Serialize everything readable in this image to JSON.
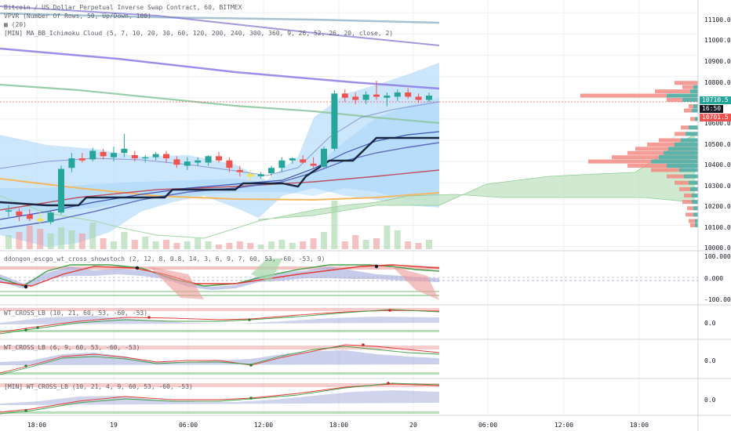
{
  "main_legend": {
    "title": "Bitcoin / US Dollar Perpetual Inverse Swap Contract, 60, BITMEX",
    "vpvr": "VPVR (Number Of Rows, 50, Up/Down, 100)",
    "unnamed": "(20)",
    "ichimoku": "[MIN] MA_BB_Ichimoku Cloud (5, 7, 10, 20, 30, 60, 120, 200, 240, 300, 360, 9, 26, 52, 26, 20, close, 2)"
  },
  "price_axis": {
    "labels": [
      "11100.0",
      "11000.0",
      "10900.0",
      "10800.0",
      "10600.0",
      "10500.0",
      "10400.0",
      "10300.0",
      "10200.0",
      "10100.0",
      "10000.0"
    ],
    "tags": [
      {
        "text": "10710.5",
        "color": "#26a69a"
      },
      {
        "text": "16:50",
        "color": "#131722"
      },
      {
        "text": "10701.5",
        "color": "#ef5350"
      }
    ]
  },
  "time_axis": {
    "labels": [
      "18:00",
      "19",
      "06:00",
      "12:00",
      "18:00",
      "20",
      "06:00",
      "12:00",
      "18:00"
    ]
  },
  "panes": [
    {
      "title": "ddongon_escgo_wt_cross_showstoch (2, 12, 8, 0.8, 14, 3, 6, 9, 7, 60, 53, -60, -53, 9)",
      "axis": [
        "100.000",
        "0.000",
        "-100.000"
      ]
    },
    {
      "title": "WT_CROSS_LB (10, 21, 60, 53, -60, -53)",
      "axis": [
        "0.0"
      ]
    },
    {
      "title": "WT_CROSS_LB (6, 9, 60, 53, -60, -53)",
      "axis": [
        "0.0"
      ]
    },
    {
      "title": "[MIN] WT_CROSS_LB (10, 21, 4, 9, 60, 53, -60, -53)",
      "axis": [
        "0.0"
      ]
    }
  ],
  "chart_data": {
    "type": "candlestick",
    "symbol": "Bitcoin / US Dollar Perpetual Inverse Swap Contract",
    "interval": "60",
    "exchange": "BITMEX",
    "ylim": [
      9980,
      11160
    ],
    "last_price": 10710.5,
    "bid_marker": 10701.5,
    "countdown": "16:50",
    "candles": [
      {
        "o": 10165,
        "h": 10195,
        "l": 10140,
        "c": 10170
      },
      {
        "o": 10165,
        "h": 10180,
        "l": 10120,
        "c": 10145
      },
      {
        "o": 10150,
        "h": 10175,
        "l": 10120,
        "c": 10130
      },
      {
        "o": 10130,
        "h": 10160,
        "l": 10105,
        "c": 10120
      },
      {
        "o": 10115,
        "h": 10165,
        "l": 10105,
        "c": 10160
      },
      {
        "o": 10160,
        "h": 10380,
        "l": 10150,
        "c": 10365
      },
      {
        "o": 10370,
        "h": 10440,
        "l": 10350,
        "c": 10415
      },
      {
        "o": 10415,
        "h": 10440,
        "l": 10395,
        "c": 10405
      },
      {
        "o": 10410,
        "h": 10465,
        "l": 10400,
        "c": 10450
      },
      {
        "o": 10445,
        "h": 10460,
        "l": 10410,
        "c": 10425
      },
      {
        "o": 10420,
        "h": 10470,
        "l": 10400,
        "c": 10440
      },
      {
        "o": 10440,
        "h": 10530,
        "l": 10420,
        "c": 10460
      },
      {
        "o": 10430,
        "h": 10450,
        "l": 10400,
        "c": 10415
      },
      {
        "o": 10415,
        "h": 10430,
        "l": 10395,
        "c": 10420
      },
      {
        "o": 10420,
        "h": 10445,
        "l": 10405,
        "c": 10435
      },
      {
        "o": 10435,
        "h": 10450,
        "l": 10395,
        "c": 10415
      },
      {
        "o": 10410,
        "h": 10425,
        "l": 10370,
        "c": 10385
      },
      {
        "o": 10380,
        "h": 10420,
        "l": 10360,
        "c": 10400
      },
      {
        "o": 10395,
        "h": 10420,
        "l": 10380,
        "c": 10405
      },
      {
        "o": 10395,
        "h": 10430,
        "l": 10380,
        "c": 10425
      },
      {
        "o": 10425,
        "h": 10445,
        "l": 10395,
        "c": 10405
      },
      {
        "o": 10405,
        "h": 10420,
        "l": 10350,
        "c": 10370
      },
      {
        "o": 10360,
        "h": 10380,
        "l": 10330,
        "c": 10350
      },
      {
        "o": 10340,
        "h": 10360,
        "l": 10310,
        "c": 10330
      },
      {
        "o": 10330,
        "h": 10350,
        "l": 10320,
        "c": 10340
      },
      {
        "o": 10345,
        "h": 10380,
        "l": 10330,
        "c": 10370
      },
      {
        "o": 10370,
        "h": 10420,
        "l": 10350,
        "c": 10405
      },
      {
        "o": 10405,
        "h": 10420,
        "l": 10390,
        "c": 10415
      },
      {
        "o": 10410,
        "h": 10430,
        "l": 10390,
        "c": 10395
      },
      {
        "o": 10390,
        "h": 10420,
        "l": 10370,
        "c": 10380
      },
      {
        "o": 10375,
        "h": 10470,
        "l": 10370,
        "c": 10460
      },
      {
        "o": 10460,
        "h": 10735,
        "l": 10450,
        "c": 10720
      },
      {
        "o": 10720,
        "h": 10740,
        "l": 10680,
        "c": 10700
      },
      {
        "o": 10705,
        "h": 10725,
        "l": 10670,
        "c": 10690
      },
      {
        "o": 10690,
        "h": 10730,
        "l": 10670,
        "c": 10715
      },
      {
        "o": 10715,
        "h": 10780,
        "l": 10690,
        "c": 10705
      },
      {
        "o": 10700,
        "h": 10725,
        "l": 10660,
        "c": 10710
      },
      {
        "o": 10705,
        "h": 10740,
        "l": 10685,
        "c": 10725
      },
      {
        "o": 10725,
        "h": 10745,
        "l": 10695,
        "c": 10705
      },
      {
        "o": 10705,
        "h": 10720,
        "l": 10675,
        "c": 10690
      },
      {
        "o": 10690,
        "h": 10725,
        "l": 10680,
        "c": 10710
      }
    ]
  },
  "colors": {
    "up": "#26a69a",
    "down": "#ef5350",
    "doji": "#f7e43a",
    "bb_fill": "#90caf9",
    "cloud_fill": "#a5d6a7",
    "grid": "#eef0f3",
    "text": "#131722"
  }
}
